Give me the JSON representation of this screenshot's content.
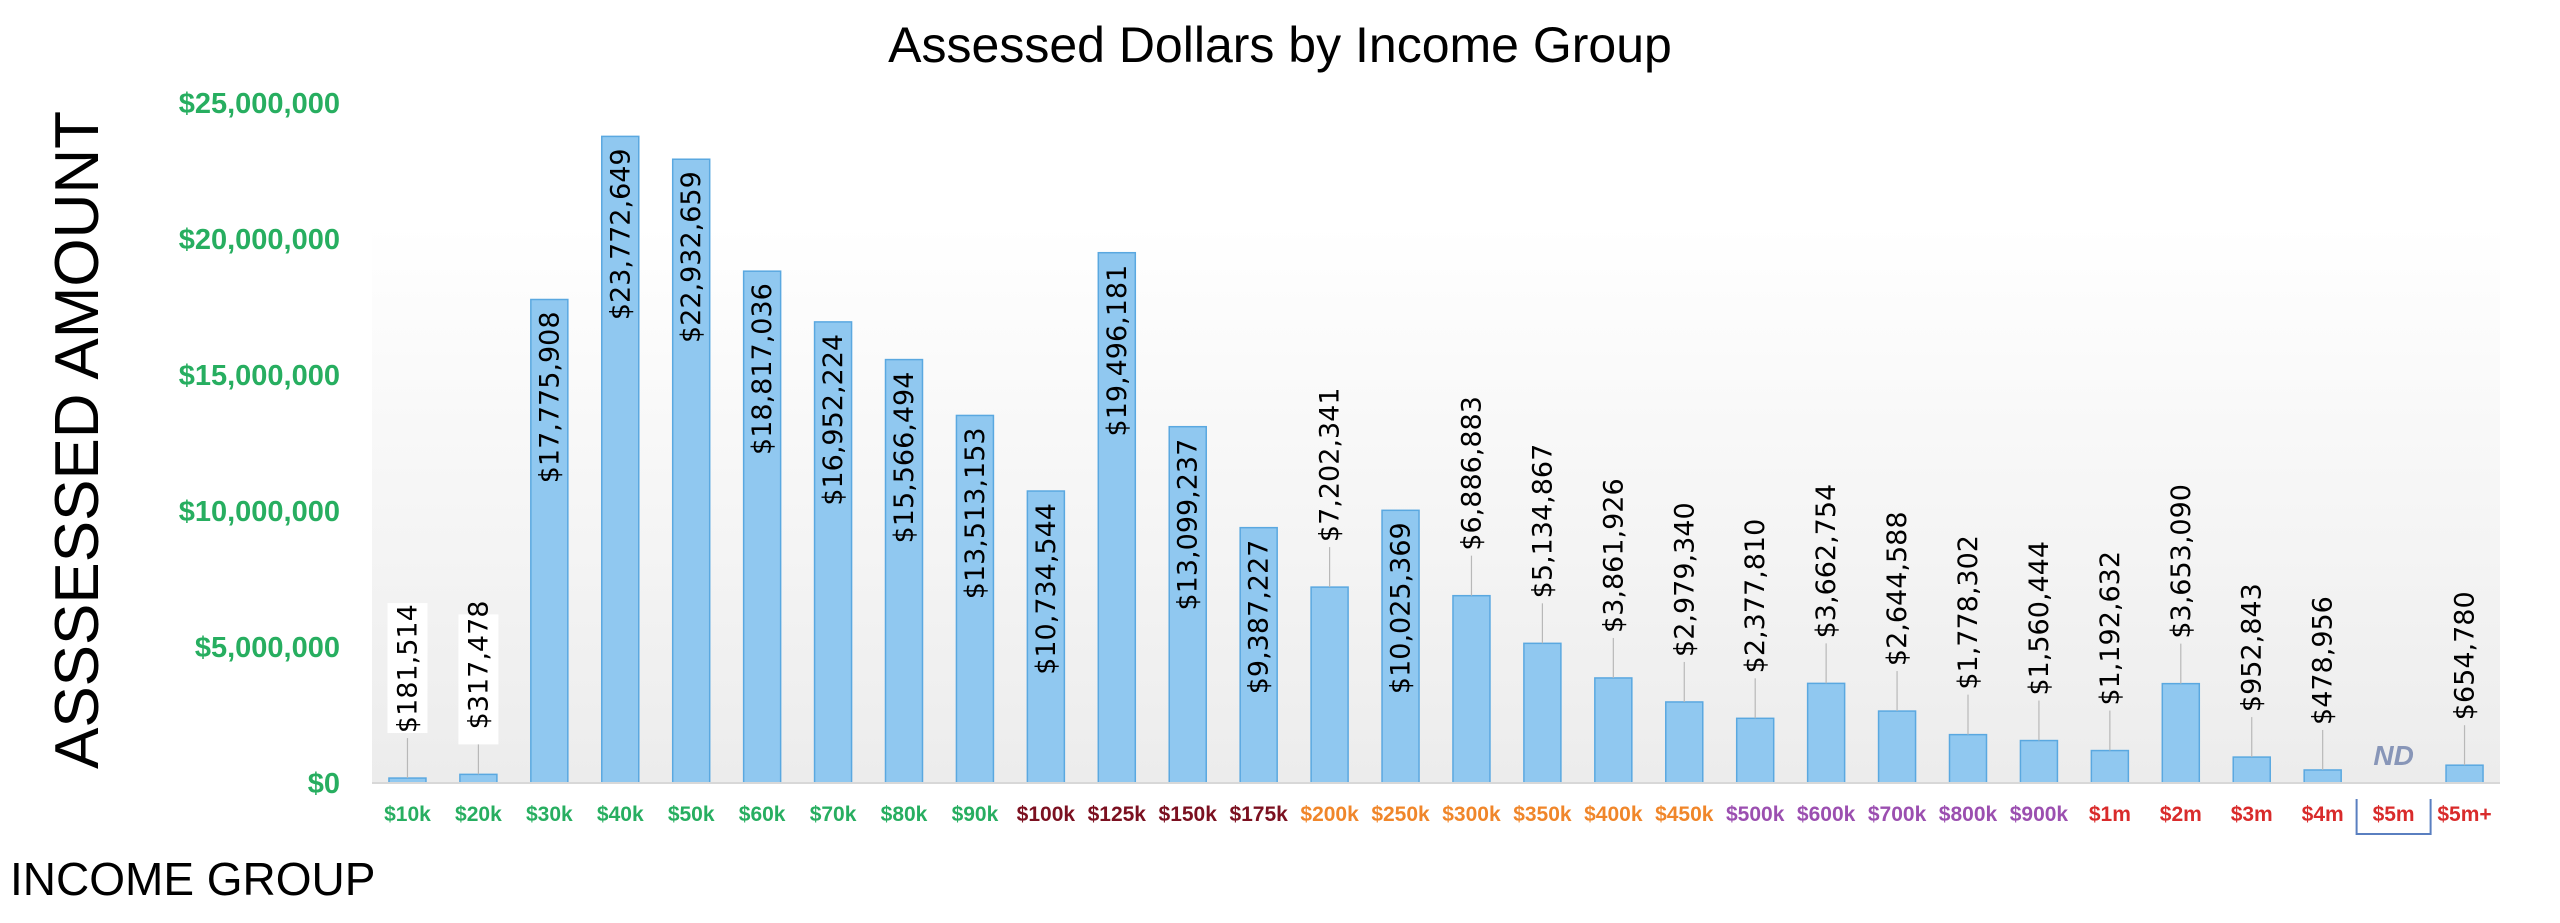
{
  "chart_data": {
    "type": "bar",
    "title": "Assessed Dollars by Income Group",
    "ylabel": "ASSSESSED AMOUNT",
    "xlabel": "INCOME GROUP",
    "ylim": [
      0,
      25000000
    ],
    "yticks": [
      0,
      5000000,
      10000000,
      15000000,
      20000000,
      25000000
    ],
    "ytick_labels": [
      "$0",
      "$5,000,000",
      "$10,000,000",
      "$15,000,000",
      "$20,000,000",
      "$25,000,000"
    ],
    "grid": false,
    "categories": [
      "$10k",
      "$20k",
      "$30k",
      "$40k",
      "$50k",
      "$60k",
      "$70k",
      "$80k",
      "$90k",
      "$100k",
      "$125k",
      "$150k",
      "$175k",
      "$200k",
      "$250k",
      "$300k",
      "$350k",
      "$400k",
      "$450k",
      "$500k",
      "$600k",
      "$700k",
      "$800k",
      "$900k",
      "$1m",
      "$2m",
      "$3m",
      "$4m",
      "$5m",
      "$5m+"
    ],
    "values": [
      181514,
      317478,
      17775908,
      23772649,
      22932659,
      18817036,
      16952224,
      15566494,
      13513153,
      10734544,
      19496181,
      13099237,
      9387227,
      7202341,
      10025369,
      6886883,
      5134867,
      3861926,
      2979340,
      2377810,
      3662754,
      2644588,
      1778302,
      1560444,
      1192632,
      3653090,
      952843,
      478956,
      null,
      654780
    ],
    "value_labels": [
      "$181,514",
      "$317,478",
      "$17,775,908",
      "$23,772,649",
      "$22,932,659",
      "$18,817,036",
      "$16,952,224",
      "$15,566,494",
      "$13,513,153",
      "$10,734,544",
      "$19,496,181",
      "$13,099,237",
      "$9,387,227",
      "$7,202,341",
      "$10,025,369",
      "$6,886,883",
      "$5,134,867",
      "$3,861,926",
      "$2,979,340",
      "$2,377,810",
      "$3,662,754",
      "$2,644,588",
      "$1,778,302",
      "$1,560,444",
      "$1,192,632",
      "$3,653,090",
      "$952,843",
      "$478,956",
      "ND",
      "$654,780"
    ],
    "category_colors": [
      "#27ae60",
      "#27ae60",
      "#27ae60",
      "#27ae60",
      "#27ae60",
      "#27ae60",
      "#27ae60",
      "#27ae60",
      "#27ae60",
      "#7b1020",
      "#7b1020",
      "#7b1020",
      "#7b1020",
      "#f0862a",
      "#f0862a",
      "#f0862a",
      "#f0862a",
      "#f0862a",
      "#f0862a",
      "#9b4fb0",
      "#9b4fb0",
      "#9b4fb0",
      "#9b4fb0",
      "#9b4fb0",
      "#d92b2b",
      "#d92b2b",
      "#d92b2b",
      "#d92b2b",
      "#d92b2b",
      "#d92b2b"
    ],
    "highlighted_category": "$5m",
    "colors": {
      "bar_fill": "#90c8f0",
      "bar_stroke": "#5aa8e0",
      "y_tick_color": "#27ae60",
      "nd_color": "#8896b8",
      "highlight_box": "#5a7fc0"
    }
  }
}
